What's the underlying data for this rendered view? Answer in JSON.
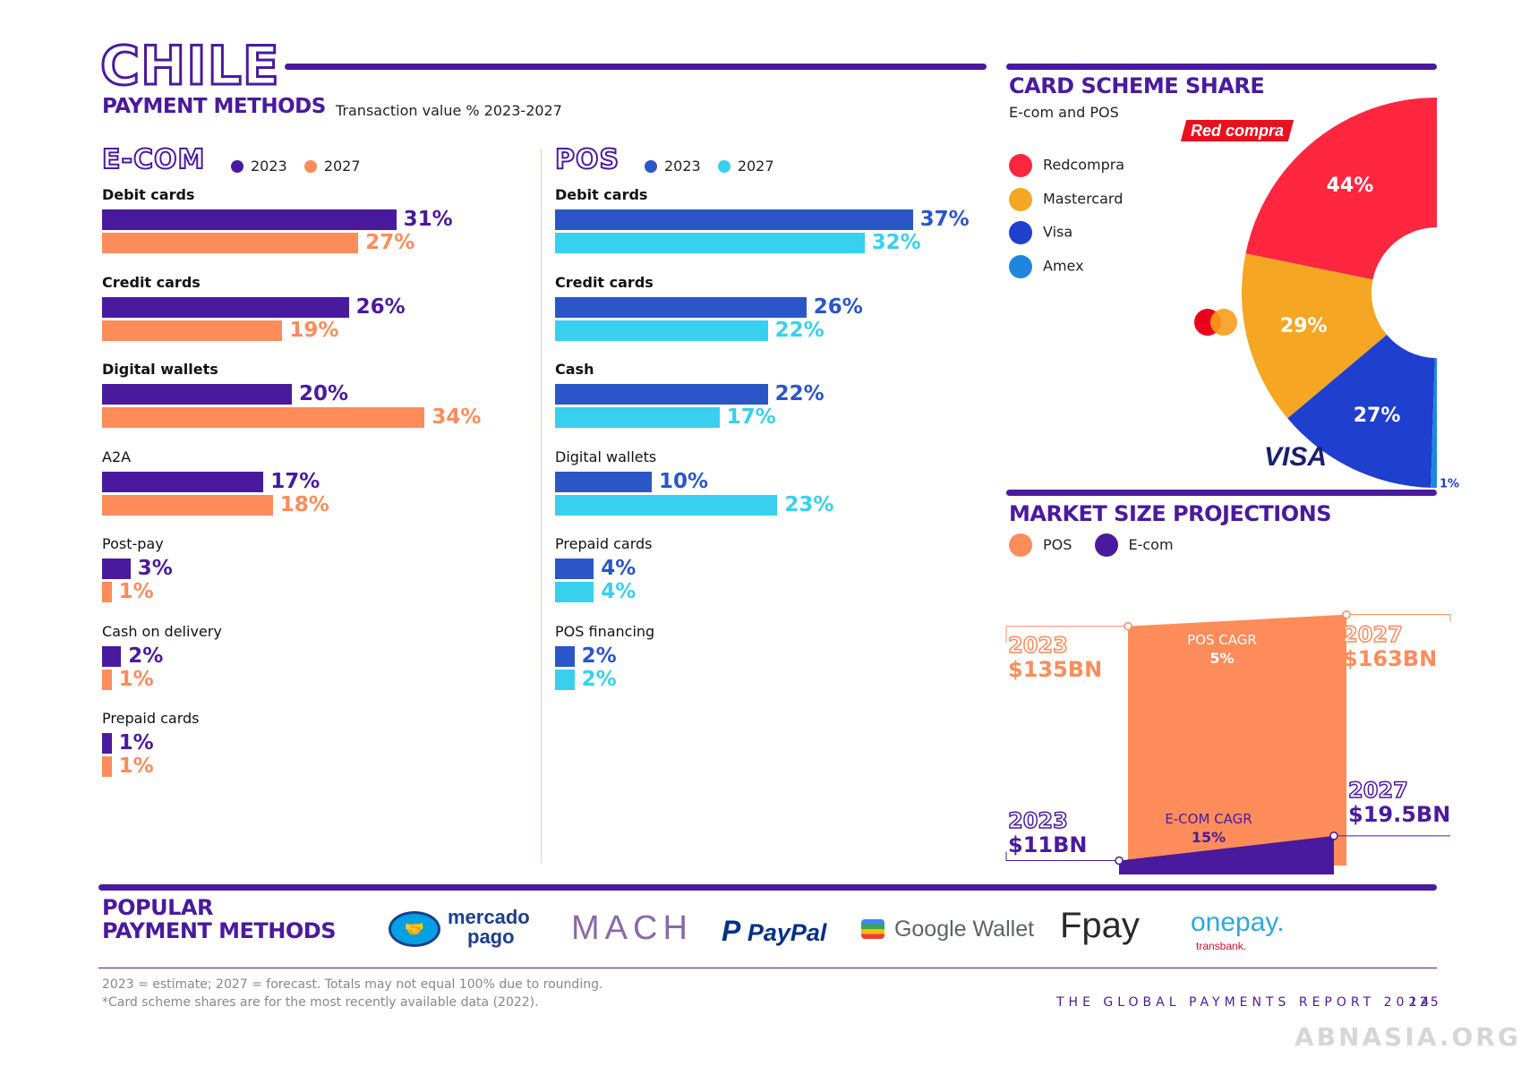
{
  "header": {
    "country": "CHILE",
    "subtitle": "PAYMENT METHODS",
    "subtitle_note": "Transaction value % 2023-2027"
  },
  "ecom": {
    "title": "E-COM",
    "legend": [
      {
        "label": "2023",
        "color": "#4a1a9e"
      },
      {
        "label": "2027",
        "color": "#ff8c5a"
      }
    ]
  },
  "pos": {
    "title": "POS",
    "legend": [
      {
        "label": "2023",
        "color": "#2b56c8"
      },
      {
        "label": "2027",
        "color": "#38d0ee"
      }
    ]
  },
  "chart_data": [
    {
      "type": "bar",
      "title": "E-COM",
      "categories": [
        "Debit cards",
        "Credit cards",
        "Digital wallets",
        "A2A",
        "Post-pay",
        "Cash on delivery",
        "Prepaid cards"
      ],
      "series": [
        {
          "name": "2023",
          "values": [
            31,
            26,
            20,
            17,
            3,
            2,
            1
          ],
          "color": "#4a1a9e"
        },
        {
          "name": "2027",
          "values": [
            27,
            19,
            34,
            18,
            1,
            1,
            1
          ],
          "color": "#ff8c5a"
        }
      ],
      "labels": [
        [
          "31%",
          "26%",
          "20%",
          "17%",
          "3%",
          "2%",
          "1%"
        ],
        [
          "27%",
          "19%",
          "34%",
          "18%",
          "1%",
          "1%",
          "1%"
        ]
      ]
    },
    {
      "type": "bar",
      "title": "POS",
      "categories": [
        "Debit cards",
        "Credit cards",
        "Cash",
        "Digital wallets",
        "Prepaid cards",
        "POS financing"
      ],
      "series": [
        {
          "name": "2023",
          "values": [
            37,
            26,
            22,
            10,
            4,
            2
          ],
          "color": "#2b56c8"
        },
        {
          "name": "2027",
          "values": [
            32,
            22,
            17,
            23,
            4,
            2
          ],
          "color": "#38d0ee"
        }
      ],
      "labels": [
        [
          "37%",
          "26%",
          "22%",
          "10%",
          "4%",
          "2%"
        ],
        [
          "32%",
          "22%",
          "17%",
          "23%",
          "4%",
          "2%"
        ]
      ]
    },
    {
      "type": "pie",
      "title": "CARD SCHEME SHARE",
      "subtitle": "E-com and POS",
      "categories": [
        "Redcompra",
        "Mastercard",
        "Visa",
        "Amex"
      ],
      "values": [
        44,
        29,
        27,
        1
      ],
      "labels": [
        "44%",
        "29%",
        "27%",
        "1%"
      ],
      "colors": [
        "#ff2740",
        "#f5a623",
        "#1f3fcf",
        "#1f86e0"
      ]
    },
    {
      "type": "area",
      "title": "MARKET SIZE PROJECTIONS",
      "series": [
        {
          "name": "POS",
          "x": [
            "2023",
            "2027"
          ],
          "values": [
            135,
            163
          ],
          "labels": [
            "$135BN",
            "$163BN"
          ],
          "cagr_label": "POS CAGR",
          "cagr": "5%",
          "color": "#ff8c5a"
        },
        {
          "name": "E-com",
          "x": [
            "2023",
            "2027"
          ],
          "values": [
            11,
            19.5
          ],
          "labels": [
            "$11BN",
            "$19.5BN"
          ],
          "cagr_label": "E-COM CAGR",
          "cagr": "15%",
          "color": "#4a1a9e"
        }
      ]
    }
  ],
  "card_scheme": {
    "title": "CARD SCHEME SHARE",
    "subtitle": "E-com and POS",
    "brand_redcompra": "Red compra",
    "brand_visa": "VISA"
  },
  "market": {
    "title": "MARKET SIZE PROJECTIONS",
    "legend": [
      {
        "label": "POS",
        "color": "#ff8c5a"
      },
      {
        "label": "E-com",
        "color": "#4a1a9e"
      }
    ],
    "pos_2023_year": "2023",
    "pos_2023_val": "$135BN",
    "pos_2027_year": "2027",
    "pos_2027_val": "$163BN",
    "pos_cagr_label": "POS CAGR",
    "pos_cagr": "5%",
    "ecom_2023_year": "2023",
    "ecom_2023_val": "$11BN",
    "ecom_2027_year": "2027",
    "ecom_2027_val": "$19.5BN",
    "ecom_cagr_label": "E-COM CAGR",
    "ecom_cagr": "15%"
  },
  "popular": {
    "title_line1": "POPULAR",
    "title_line2": "PAYMENT METHODS",
    "logos": [
      {
        "text1": "mercado",
        "text2": "pago"
      },
      {
        "text1": "MACH"
      },
      {
        "text1": "PayPal"
      },
      {
        "text1": "Google Wallet"
      },
      {
        "text1": "Fpay"
      },
      {
        "text1": "onepay.",
        "text2": "transbank."
      }
    ]
  },
  "footer": {
    "note1": "2023 = estimate; 2027 = forecast. Totals may not equal 100% due to rounding.",
    "note2": "*Card scheme shares are for the most recently available data (2022).",
    "report": "THE GLOBAL PAYMENTS REPORT 2024",
    "page": "125",
    "watermark": "ABNASIA.ORG"
  }
}
